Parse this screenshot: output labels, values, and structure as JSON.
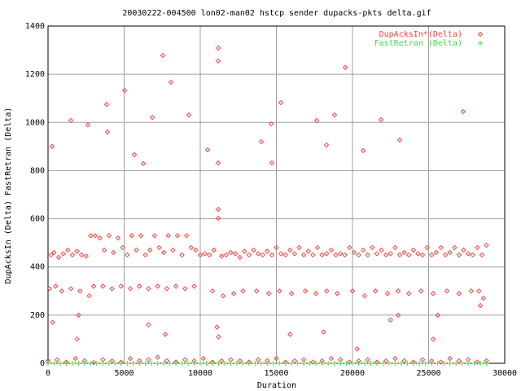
{
  "chart_data": {
    "type": "scatter",
    "title": "20030222-004500 lon02-man02 hstcp sender dupacks-pkts delta.gif",
    "xlabel": "Duration",
    "ylabel": "DupAcksIn (Delta) FastRetran (Delta)",
    "xlim": [
      0,
      30000
    ],
    "xticks": [
      0,
      5000,
      10000,
      15000,
      20000,
      25000,
      30000
    ],
    "ylim": [
      0,
      1400
    ],
    "yticks": [
      0,
      200,
      400,
      600,
      800,
      1000,
      1200,
      1400
    ],
    "grid": true,
    "legend": "top-right",
    "series": [
      {
        "name": "DupAcksIn*(Delta)",
        "color": "#ff4040",
        "marker": "diamond",
        "x": [
          270,
          1500,
          2620,
          3850,
          3900,
          5030,
          5670,
          6260,
          6850,
          7540,
          8070,
          9250,
          10480,
          11180,
          11180,
          11180,
          11180,
          11180,
          14010,
          14650,
          14700,
          15290,
          17650,
          18290,
          18820,
          19520,
          20700,
          21870,
          23100,
          27270,
          200,
          400,
          700,
          1000,
          1300,
          1600,
          1900,
          2200,
          2500,
          2800,
          3100,
          3400,
          3700,
          4000,
          4300,
          4600,
          4900,
          5200,
          5500,
          5800,
          6100,
          6400,
          6700,
          7000,
          7300,
          7600,
          7900,
          8200,
          8500,
          8800,
          9100,
          9400,
          9700,
          10000,
          10300,
          10600,
          10900,
          11400,
          11700,
          12000,
          12300,
          12600,
          12900,
          13200,
          13500,
          13800,
          14100,
          14400,
          14700,
          15000,
          15300,
          15600,
          15900,
          16200,
          16500,
          16800,
          17100,
          17400,
          17700,
          18000,
          18300,
          18600,
          18900,
          19200,
          19500,
          19800,
          20100,
          20400,
          20700,
          21000,
          21300,
          21600,
          21900,
          22200,
          22500,
          22800,
          23100,
          23400,
          23700,
          24000,
          24300,
          24600,
          24900,
          25200,
          25500,
          25800,
          26100,
          26400,
          26700,
          27000,
          27300,
          27600,
          27900,
          28200,
          28500,
          28800,
          100,
          500,
          900,
          1500,
          2100,
          2700,
          3000,
          3600,
          4200,
          4800,
          5400,
          6000,
          6600,
          7200,
          7800,
          8400,
          9000,
          9600,
          10800,
          11500,
          12200,
          12800,
          13700,
          14500,
          15200,
          16000,
          16900,
          17600,
          18300,
          19000,
          20000,
          20800,
          21500,
          22300,
          23000,
          23700,
          24500,
          25300,
          26200,
          27000,
          27800,
          28300,
          300,
          1900,
          2000,
          6600,
          7700,
          11100,
          11200,
          15900,
          18100,
          20300,
          22500,
          23000,
          25300,
          25600,
          28400,
          28600,
          0,
          600,
          1200,
          1800,
          2400,
          3000,
          3600,
          4200,
          4800,
          5400,
          6000,
          6600,
          7200,
          7800,
          8400,
          9000,
          9600,
          10200,
          10800,
          11400,
          12000,
          12600,
          13200,
          13800,
          14400,
          15000,
          15600,
          16200,
          16800,
          17400,
          18000,
          18600,
          19200,
          19800,
          20400,
          21000,
          21600,
          22200,
          22800,
          23400,
          24000,
          24600,
          25200,
          25800,
          26400,
          27000,
          27600,
          28200,
          28800
        ],
        "values": [
          900,
          1008,
          990,
          1075,
          960,
          1133,
          866,
          829,
          1021,
          1278,
          1167,
          1031,
          886,
          1309,
          1255,
          832,
          639,
          602,
          920,
          994,
          832,
          1082,
          1008,
          906,
          1031,
          1228,
          883,
          1011,
          927,
          1045,
          450,
          460,
          440,
          455,
          470,
          450,
          465,
          450,
          445,
          530,
          530,
          520,
          470,
          530,
          460,
          520,
          480,
          450,
          530,
          470,
          530,
          450,
          470,
          530,
          480,
          460,
          530,
          470,
          530,
          450,
          530,
          480,
          470,
          450,
          455,
          450,
          470,
          445,
          450,
          460,
          455,
          440,
          465,
          450,
          470,
          455,
          450,
          465,
          450,
          480,
          455,
          450,
          470,
          455,
          480,
          450,
          465,
          450,
          480,
          450,
          455,
          470,
          450,
          455,
          450,
          480,
          460,
          450,
          470,
          450,
          480,
          455,
          470,
          450,
          455,
          480,
          450,
          460,
          450,
          470,
          455,
          450,
          480,
          450,
          460,
          480,
          450,
          460,
          480,
          450,
          470,
          455,
          450,
          480,
          450,
          490,
          310,
          320,
          300,
          310,
          300,
          280,
          320,
          320,
          310,
          320,
          310,
          320,
          310,
          320,
          310,
          320,
          310,
          320,
          300,
          280,
          290,
          300,
          300,
          290,
          300,
          290,
          300,
          290,
          300,
          290,
          300,
          280,
          300,
          290,
          300,
          290,
          300,
          290,
          300,
          290,
          300,
          300,
          170,
          100,
          200,
          160,
          120,
          150,
          110,
          120,
          130,
          60,
          180,
          200,
          100,
          200,
          240,
          270,
          10,
          15,
          5,
          20,
          10,
          3,
          15,
          10,
          5,
          20,
          10,
          15,
          25,
          10,
          5,
          15,
          10,
          20,
          5,
          10,
          15,
          10,
          5,
          15,
          10,
          20,
          5,
          10,
          15,
          5,
          10,
          20,
          15,
          5,
          10,
          15,
          5,
          10,
          20,
          10,
          5,
          15,
          10,
          5,
          20,
          10,
          15,
          5,
          10
        ]
      },
      {
        "name": "FastRetran (Delta)",
        "color": "#40e040",
        "marker": "plus",
        "x": [
          0,
          400,
          800,
          1200,
          1600,
          2000,
          2400,
          2800,
          3200,
          3600,
          4000,
          4400,
          4800,
          5200,
          5600,
          6000,
          6400,
          6800,
          7200,
          7600,
          8000,
          8400,
          8800,
          9200,
          9600,
          10000,
          10400,
          10800,
          11200,
          11600,
          12000,
          12400,
          12800,
          13200,
          13600,
          14000,
          14400,
          14800,
          15200,
          15600,
          16000,
          16400,
          16800,
          17200,
          17600,
          18000,
          18400,
          18800,
          19200,
          19600,
          20000,
          20400,
          20800,
          21200,
          21600,
          22000,
          22400,
          22800,
          23200,
          23600,
          24000,
          24400,
          24800,
          25200,
          25600,
          26000,
          26400,
          26800,
          27200,
          27600,
          28000,
          28400,
          28800
        ],
        "values": [
          0,
          0,
          0,
          0,
          0,
          0,
          0,
          0,
          0,
          0,
          0,
          0,
          0,
          0,
          0,
          0,
          0,
          0,
          0,
          0,
          0,
          0,
          0,
          0,
          0,
          0,
          0,
          0,
          0,
          0,
          0,
          0,
          0,
          0,
          0,
          0,
          0,
          0,
          0,
          0,
          0,
          0,
          0,
          0,
          0,
          0,
          0,
          0,
          0,
          0,
          0,
          0,
          0,
          0,
          0,
          0,
          0,
          0,
          0,
          0,
          0,
          0,
          0,
          0,
          0,
          0,
          0,
          0,
          0,
          0,
          0,
          0,
          0
        ]
      }
    ]
  }
}
